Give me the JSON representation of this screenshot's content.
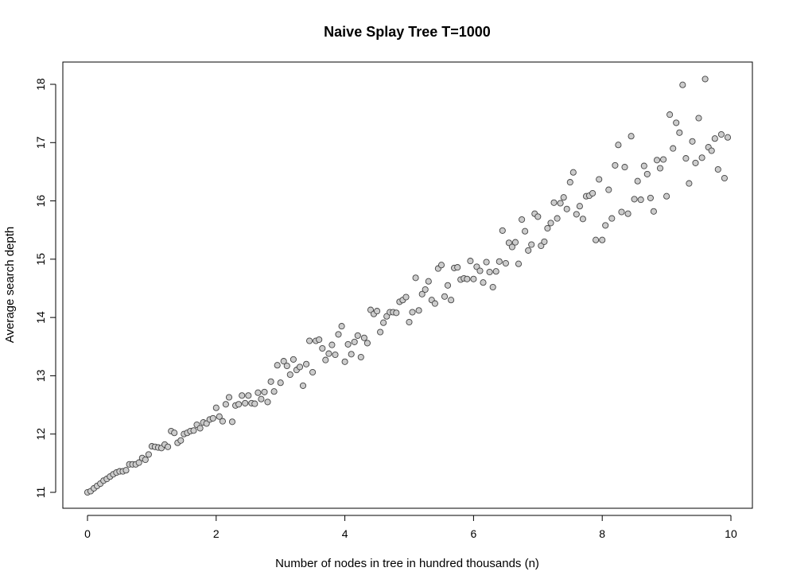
{
  "chart_data": {
    "type": "scatter",
    "title": "Naive Splay Tree T=1000",
    "xlabel": "Number of nodes in tree in hundred thousands (n)",
    "ylabel": "Average search depth",
    "xlim": [
      0,
      10
    ],
    "ylim": [
      11,
      18
    ],
    "xticks": [
      "0",
      "2",
      "4",
      "6",
      "8",
      "10"
    ],
    "yticks": [
      "11",
      "12",
      "13",
      "14",
      "15",
      "16",
      "17",
      "18"
    ],
    "grid": false,
    "point_fill": "#cccccc",
    "point_stroke": "#444444",
    "points": [
      [
        0.0,
        11.0
      ],
      [
        0.05,
        11.02
      ],
      [
        0.1,
        11.07
      ],
      [
        0.15,
        11.11
      ],
      [
        0.2,
        11.15
      ],
      [
        0.25,
        11.2
      ],
      [
        0.3,
        11.23
      ],
      [
        0.35,
        11.27
      ],
      [
        0.4,
        11.31
      ],
      [
        0.45,
        11.34
      ],
      [
        0.5,
        11.36
      ],
      [
        0.55,
        11.36
      ],
      [
        0.6,
        11.38
      ],
      [
        0.65,
        11.48
      ],
      [
        0.7,
        11.48
      ],
      [
        0.75,
        11.48
      ],
      [
        0.8,
        11.51
      ],
      [
        0.85,
        11.59
      ],
      [
        0.9,
        11.56
      ],
      [
        0.95,
        11.65
      ],
      [
        1.0,
        11.79
      ],
      [
        1.05,
        11.78
      ],
      [
        1.1,
        11.77
      ],
      [
        1.15,
        11.76
      ],
      [
        1.2,
        11.82
      ],
      [
        1.25,
        11.78
      ],
      [
        1.3,
        12.05
      ],
      [
        1.35,
        12.02
      ],
      [
        1.4,
        11.85
      ],
      [
        1.45,
        11.89
      ],
      [
        1.5,
        12.0
      ],
      [
        1.55,
        12.02
      ],
      [
        1.6,
        12.05
      ],
      [
        1.65,
        12.06
      ],
      [
        1.7,
        12.16
      ],
      [
        1.75,
        12.1
      ],
      [
        1.8,
        12.2
      ],
      [
        1.85,
        12.18
      ],
      [
        1.9,
        12.25
      ],
      [
        1.95,
        12.27
      ],
      [
        2.0,
        12.45
      ],
      [
        2.05,
        12.3
      ],
      [
        2.1,
        12.22
      ],
      [
        2.15,
        12.51
      ],
      [
        2.2,
        12.63
      ],
      [
        2.25,
        12.21
      ],
      [
        2.3,
        12.49
      ],
      [
        2.35,
        12.51
      ],
      [
        2.4,
        12.66
      ],
      [
        2.45,
        12.53
      ],
      [
        2.5,
        12.66
      ],
      [
        2.55,
        12.53
      ],
      [
        2.6,
        12.52
      ],
      [
        2.65,
        12.71
      ],
      [
        2.7,
        12.6
      ],
      [
        2.75,
        12.72
      ],
      [
        2.8,
        12.55
      ],
      [
        2.85,
        12.9
      ],
      [
        2.9,
        12.73
      ],
      [
        2.95,
        13.18
      ],
      [
        3.0,
        12.88
      ],
      [
        3.05,
        13.25
      ],
      [
        3.1,
        13.17
      ],
      [
        3.15,
        13.02
      ],
      [
        3.2,
        13.28
      ],
      [
        3.25,
        13.1
      ],
      [
        3.3,
        13.15
      ],
      [
        3.35,
        12.83
      ],
      [
        3.4,
        13.2
      ],
      [
        3.45,
        13.6
      ],
      [
        3.5,
        13.06
      ],
      [
        3.55,
        13.6
      ],
      [
        3.6,
        13.62
      ],
      [
        3.65,
        13.47
      ],
      [
        3.7,
        13.27
      ],
      [
        3.75,
        13.38
      ],
      [
        3.8,
        13.53
      ],
      [
        3.85,
        13.36
      ],
      [
        3.9,
        13.71
      ],
      [
        3.95,
        13.85
      ],
      [
        4.0,
        13.24
      ],
      [
        4.05,
        13.54
      ],
      [
        4.1,
        13.37
      ],
      [
        4.15,
        13.58
      ],
      [
        4.2,
        13.69
      ],
      [
        4.25,
        13.32
      ],
      [
        4.3,
        13.65
      ],
      [
        4.35,
        13.56
      ],
      [
        4.4,
        14.13
      ],
      [
        4.45,
        14.06
      ],
      [
        4.5,
        14.11
      ],
      [
        4.55,
        13.75
      ],
      [
        4.6,
        13.91
      ],
      [
        4.65,
        14.02
      ],
      [
        4.7,
        14.09
      ],
      [
        4.75,
        14.09
      ],
      [
        4.8,
        14.08
      ],
      [
        4.85,
        14.27
      ],
      [
        4.9,
        14.3
      ],
      [
        4.95,
        14.35
      ],
      [
        5.0,
        13.92
      ],
      [
        5.05,
        14.09
      ],
      [
        5.1,
        14.68
      ],
      [
        5.15,
        14.12
      ],
      [
        5.2,
        14.4
      ],
      [
        5.25,
        14.48
      ],
      [
        5.3,
        14.62
      ],
      [
        5.35,
        14.3
      ],
      [
        5.4,
        14.24
      ],
      [
        5.45,
        14.84
      ],
      [
        5.5,
        14.9
      ],
      [
        5.55,
        14.36
      ],
      [
        5.6,
        14.55
      ],
      [
        5.65,
        14.3
      ],
      [
        5.7,
        14.85
      ],
      [
        5.75,
        14.86
      ],
      [
        5.8,
        14.65
      ],
      [
        5.85,
        14.67
      ],
      [
        5.9,
        14.66
      ],
      [
        5.95,
        14.97
      ],
      [
        6.0,
        14.66
      ],
      [
        6.05,
        14.87
      ],
      [
        6.1,
        14.8
      ],
      [
        6.15,
        14.6
      ],
      [
        6.2,
        14.95
      ],
      [
        6.25,
        14.78
      ],
      [
        6.3,
        14.52
      ],
      [
        6.35,
        14.79
      ],
      [
        6.4,
        14.96
      ],
      [
        6.45,
        15.49
      ],
      [
        6.5,
        14.93
      ],
      [
        6.55,
        15.28
      ],
      [
        6.6,
        15.21
      ],
      [
        6.65,
        15.29
      ],
      [
        6.7,
        14.92
      ],
      [
        6.75,
        15.68
      ],
      [
        6.8,
        15.48
      ],
      [
        6.85,
        15.15
      ],
      [
        6.9,
        15.25
      ],
      [
        6.95,
        15.78
      ],
      [
        7.0,
        15.73
      ],
      [
        7.05,
        15.23
      ],
      [
        7.1,
        15.3
      ],
      [
        7.15,
        15.53
      ],
      [
        7.2,
        15.62
      ],
      [
        7.25,
        15.97
      ],
      [
        7.3,
        15.7
      ],
      [
        7.35,
        15.96
      ],
      [
        7.4,
        16.06
      ],
      [
        7.45,
        15.86
      ],
      [
        7.5,
        16.32
      ],
      [
        7.55,
        16.49
      ],
      [
        7.6,
        15.77
      ],
      [
        7.65,
        15.91
      ],
      [
        7.7,
        15.69
      ],
      [
        7.75,
        16.08
      ],
      [
        7.8,
        16.09
      ],
      [
        7.85,
        16.13
      ],
      [
        7.9,
        15.33
      ],
      [
        7.95,
        16.37
      ],
      [
        8.0,
        15.33
      ],
      [
        8.05,
        15.58
      ],
      [
        8.1,
        16.19
      ],
      [
        8.15,
        15.7
      ],
      [
        8.2,
        16.61
      ],
      [
        8.25,
        16.96
      ],
      [
        8.3,
        15.81
      ],
      [
        8.35,
        16.58
      ],
      [
        8.4,
        15.78
      ],
      [
        8.45,
        17.11
      ],
      [
        8.5,
        16.03
      ],
      [
        8.55,
        16.34
      ],
      [
        8.6,
        16.02
      ],
      [
        8.65,
        16.6
      ],
      [
        8.7,
        16.46
      ],
      [
        8.75,
        16.05
      ],
      [
        8.8,
        15.82
      ],
      [
        8.85,
        16.7
      ],
      [
        8.9,
        16.56
      ],
      [
        8.95,
        16.71
      ],
      [
        9.0,
        16.08
      ],
      [
        9.05,
        17.48
      ],
      [
        9.1,
        16.9
      ],
      [
        9.15,
        17.34
      ],
      [
        9.2,
        17.17
      ],
      [
        9.25,
        17.99
      ],
      [
        9.3,
        16.73
      ],
      [
        9.35,
        16.3
      ],
      [
        9.4,
        17.02
      ],
      [
        9.45,
        16.65
      ],
      [
        9.5,
        17.42
      ],
      [
        9.55,
        16.74
      ],
      [
        9.6,
        18.09
      ],
      [
        9.65,
        16.92
      ],
      [
        9.7,
        16.86
      ],
      [
        9.75,
        17.07
      ],
      [
        9.8,
        16.54
      ],
      [
        9.85,
        17.14
      ],
      [
        9.9,
        16.39
      ],
      [
        9.95,
        17.09
      ]
    ]
  }
}
